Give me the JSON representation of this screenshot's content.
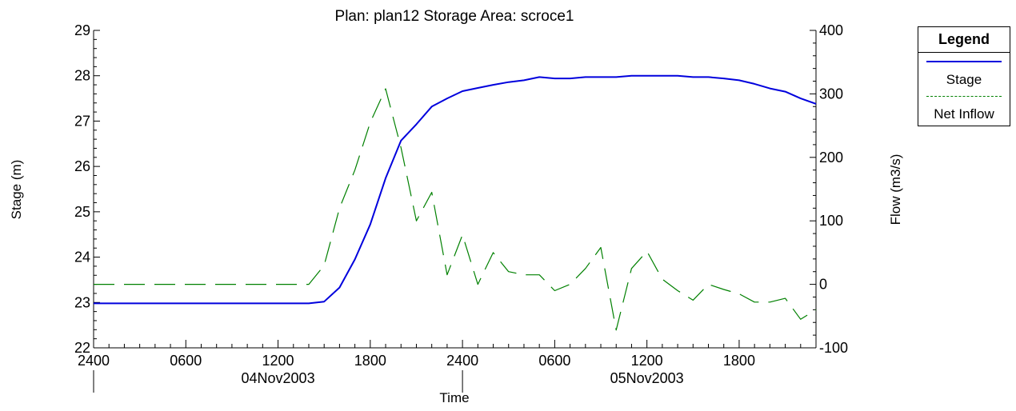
{
  "chart_data": {
    "type": "line",
    "title": "Plan: plan12   Storage Area: scroce1",
    "xlabel": "Time",
    "ylabel": "Stage (m)",
    "y2label": "Flow (m3/s)",
    "ylim": [
      22,
      29
    ],
    "y2lim": [
      -100,
      400
    ],
    "yticks": [
      "22",
      "23",
      "24",
      "25",
      "26",
      "27",
      "28",
      "29"
    ],
    "y2ticks": [
      "-100",
      "0",
      "100",
      "200",
      "300",
      "400"
    ],
    "xlim_hours": [
      0,
      47
    ],
    "xticks": [
      {
        "h": 0,
        "label": "2400"
      },
      {
        "h": 6,
        "label": "0600"
      },
      {
        "h": 12,
        "label": "1200"
      },
      {
        "h": 18,
        "label": "1800"
      },
      {
        "h": 24,
        "label": "2400"
      },
      {
        "h": 30,
        "label": "0600"
      },
      {
        "h": 36,
        "label": "1200"
      },
      {
        "h": 42,
        "label": "1800"
      }
    ],
    "date_labels": [
      {
        "h": 12,
        "label": "04Nov2003"
      },
      {
        "h": 36,
        "label": "05Nov2003"
      }
    ],
    "grid": false,
    "legend_position": "right",
    "series": [
      {
        "name": "Stage",
        "axis": "left",
        "color": "#0000dd",
        "style": "solid",
        "x": [
          0,
          1,
          2,
          3,
          4,
          5,
          6,
          7,
          8,
          9,
          10,
          11,
          12,
          13,
          14,
          15,
          16,
          17,
          18,
          19,
          20,
          21,
          22,
          23,
          24,
          25,
          26,
          27,
          28,
          29,
          30,
          31,
          32,
          33,
          34,
          35,
          36,
          37,
          38,
          39,
          40,
          41,
          42,
          43,
          44,
          45,
          46,
          47
        ],
        "values": [
          22.98,
          22.98,
          22.98,
          22.98,
          22.98,
          22.98,
          22.98,
          22.98,
          22.98,
          22.98,
          22.98,
          22.98,
          22.98,
          22.98,
          22.98,
          23.02,
          23.33,
          23.95,
          24.72,
          25.74,
          26.57,
          26.93,
          27.32,
          27.5,
          27.66,
          27.73,
          27.8,
          27.86,
          27.9,
          27.97,
          27.94,
          27.94,
          27.97,
          27.97,
          27.97,
          28.0,
          28.0,
          28.0,
          28.0,
          27.97,
          27.97,
          27.94,
          27.9,
          27.82,
          27.72,
          27.65,
          27.5,
          27.38
        ]
      },
      {
        "name": "Net Inflow",
        "axis": "right",
        "color": "#008000",
        "style": "dashed",
        "x": [
          0,
          1,
          2,
          3,
          4,
          5,
          6,
          7,
          8,
          9,
          10,
          11,
          12,
          13,
          14,
          15,
          16,
          17,
          18,
          19,
          20,
          21,
          22,
          23,
          24,
          25,
          26,
          27,
          28,
          29,
          30,
          31,
          32,
          33,
          34,
          35,
          36,
          37,
          38,
          39,
          40,
          41,
          42,
          43,
          44,
          45,
          46,
          47
        ],
        "values": [
          0,
          0,
          0,
          0,
          0,
          0,
          0,
          0,
          0,
          0,
          0,
          0,
          0,
          0,
          0,
          30,
          120,
          180,
          255,
          308,
          215,
          100,
          145,
          15,
          78,
          0,
          50,
          20,
          15,
          15,
          -10,
          0,
          25,
          58,
          -72,
          25,
          52,
          8,
          -10,
          -25,
          0,
          -8,
          -15,
          -28,
          -28,
          -22,
          -55,
          -40
        ]
      }
    ]
  }
}
